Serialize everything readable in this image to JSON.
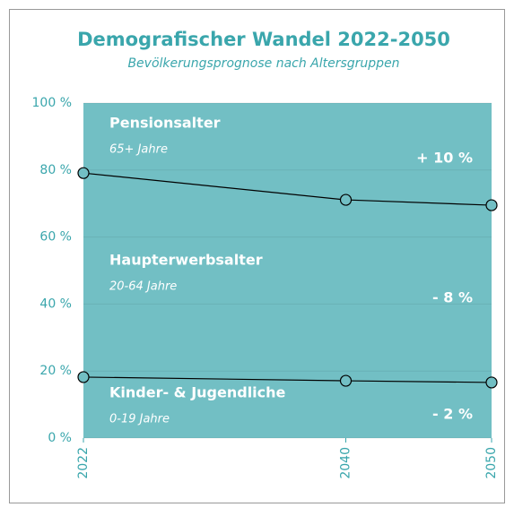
{
  "chart_data": {
    "type": "area",
    "title": "Demografischer Wandel 2022-2050",
    "subtitle": "Bevölkerungsprognose nach Altersgruppen",
    "x": [
      2022,
      2040,
      2050
    ],
    "series": [
      {
        "name": "Kinder- & Jugendliche",
        "description": "0-19 Jahre",
        "color": "#72bfc4",
        "values": [
          18.2,
          17.1,
          16.6
        ],
        "change_label": "- 2 %"
      },
      {
        "name": "Haupterwerbsalter",
        "description": "20-64 Jahre",
        "color": "#72bfc4",
        "values": [
          60.9,
          54.0,
          52.9
        ],
        "change_label": "- 8 %"
      },
      {
        "name": "Pensionsalter",
        "description": "65+ Jahre",
        "color": "#72bfc4",
        "values": [
          20.9,
          28.9,
          30.5
        ],
        "change_label": "+ 10 %"
      }
    ],
    "stacked": true,
    "xlim": [
      2022,
      2050
    ],
    "xticks": [
      2022,
      2040,
      2050
    ],
    "ylim": [
      0,
      100
    ],
    "yticks": [
      {
        "value": 0,
        "label": "0 %"
      },
      {
        "value": 20,
        "label": "20 %"
      },
      {
        "value": 40,
        "label": "40 %"
      },
      {
        "value": 60,
        "label": "60 %"
      },
      {
        "value": 80,
        "label": "80 %"
      },
      {
        "value": 100,
        "label": "100 %"
      }
    ],
    "grid": true
  }
}
